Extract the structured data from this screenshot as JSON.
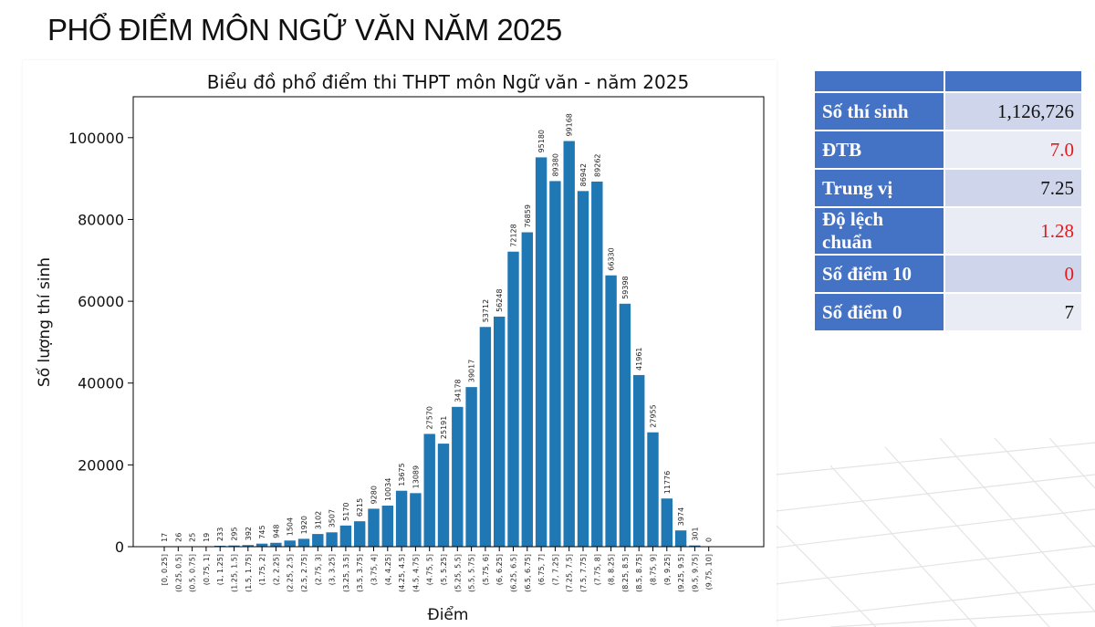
{
  "page": {
    "title": "PHỔ ĐIỂM MÔN NGỮ VĂN NĂM 2025"
  },
  "stats": {
    "header": [
      "",
      ""
    ],
    "rows": [
      {
        "label": "Số thí sinh",
        "value": "1,126,726",
        "color": "#111111"
      },
      {
        "label": "ĐTB",
        "value": "7.0",
        "color": "#e31a1c"
      },
      {
        "label": "Trung vị",
        "value": "7.25",
        "color": "#111111"
      },
      {
        "label": "Độ lệch chuẩn",
        "value": "1.28",
        "color": "#e31a1c"
      },
      {
        "label": "Số điểm 10",
        "value": "0",
        "color": "#e31a1c"
      },
      {
        "label": "Số điểm 0",
        "value": "7",
        "color": "#111111"
      }
    ],
    "label_bg": "#4472c4",
    "row_bg_odd": "#cfd5ea",
    "row_bg_even": "#e9ebf5"
  },
  "chart_data": {
    "type": "bar",
    "title": "Biểu đồ phổ điểm thi THPT môn Ngữ văn - năm 2025",
    "xlabel": "Điểm",
    "ylabel": "Số lượng thí sinh",
    "ylim": [
      0,
      110000
    ],
    "yticks": [
      0,
      20000,
      40000,
      60000,
      80000,
      100000
    ],
    "bar_color": "#1f77b4",
    "grid": false,
    "categories": [
      "[0, 0.25]",
      "(0.25, 0.5]",
      "(0.5, 0.75]",
      "(0.75, 1]",
      "(1, 1.25]",
      "(1.25, 1.5]",
      "(1.5, 1.75]",
      "(1.75, 2]",
      "(2, 2.25]",
      "(2.25, 2.5]",
      "(2.5, 2.75]",
      "(2.75, 3]",
      "(3, 3.25]",
      "(3.25, 3.5]",
      "(3.5, 3.75]",
      "(3.75, 4]",
      "(4, 4.25]",
      "(4.25, 4.5]",
      "(4.5, 4.75]",
      "(4.75, 5]",
      "(5, 5.25]",
      "(5.25, 5.5]",
      "(5.5, 5.75]",
      "(5.75, 6]",
      "(6, 6.25]",
      "(6.25, 6.5]",
      "(6.5, 6.75]",
      "(6.75, 7]",
      "(7, 7.25]",
      "(7.25, 7.5]",
      "(7.5, 7.75]",
      "(7.75, 8]",
      "(8, 8.25]",
      "(8.25, 8.5]",
      "(8.5, 8.75]",
      "(8.75, 9]",
      "(9, 9.25]",
      "(9.25, 9.5]",
      "(9.5, 9.75]",
      "(9.75, 10]"
    ],
    "values": [
      17,
      26,
      25,
      19,
      233,
      295,
      392,
      745,
      948,
      1504,
      1920,
      3102,
      3507,
      5170,
      6215,
      9280,
      10034,
      13675,
      13089,
      27570,
      25191,
      34178,
      39017,
      53712,
      56248,
      72128,
      76859,
      95180,
      89380,
      99168,
      86942,
      89262,
      66330,
      59398,
      41961,
      27955,
      11776,
      3974,
      301,
      0
    ]
  }
}
